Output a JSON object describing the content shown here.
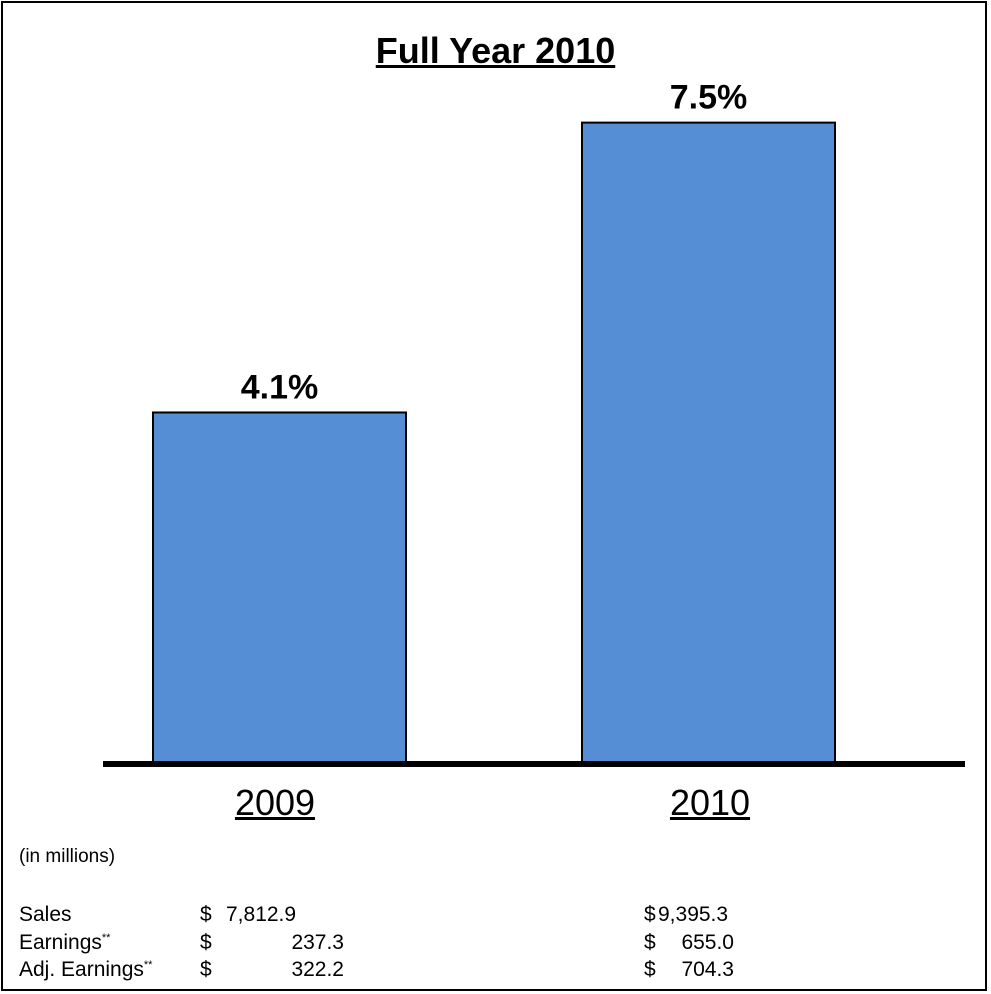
{
  "title": "Full Year 2010",
  "chart_data": {
    "type": "bar",
    "title": "Full Year 2010",
    "categories": [
      "2009",
      "2010"
    ],
    "values": [
      4.1,
      7.5
    ],
    "data_labels": [
      "4.1%",
      "7.5%"
    ],
    "bar_color": "#558ed5",
    "ylim": [
      0,
      8
    ],
    "grid": false,
    "legend": "none"
  },
  "table": {
    "note": "(in millions)",
    "currency": "$",
    "footnote_mark": "**",
    "rows": [
      {
        "label": "Sales",
        "mark": "",
        "v2009": "7,812.9",
        "v2010": "9,395.3"
      },
      {
        "label": "Earnings",
        "mark": "**",
        "v2009": "237.3",
        "v2010": "655.0"
      },
      {
        "label": "Adj. Earnings",
        "mark": "**",
        "v2009": "322.2",
        "v2010": "704.3"
      }
    ]
  }
}
